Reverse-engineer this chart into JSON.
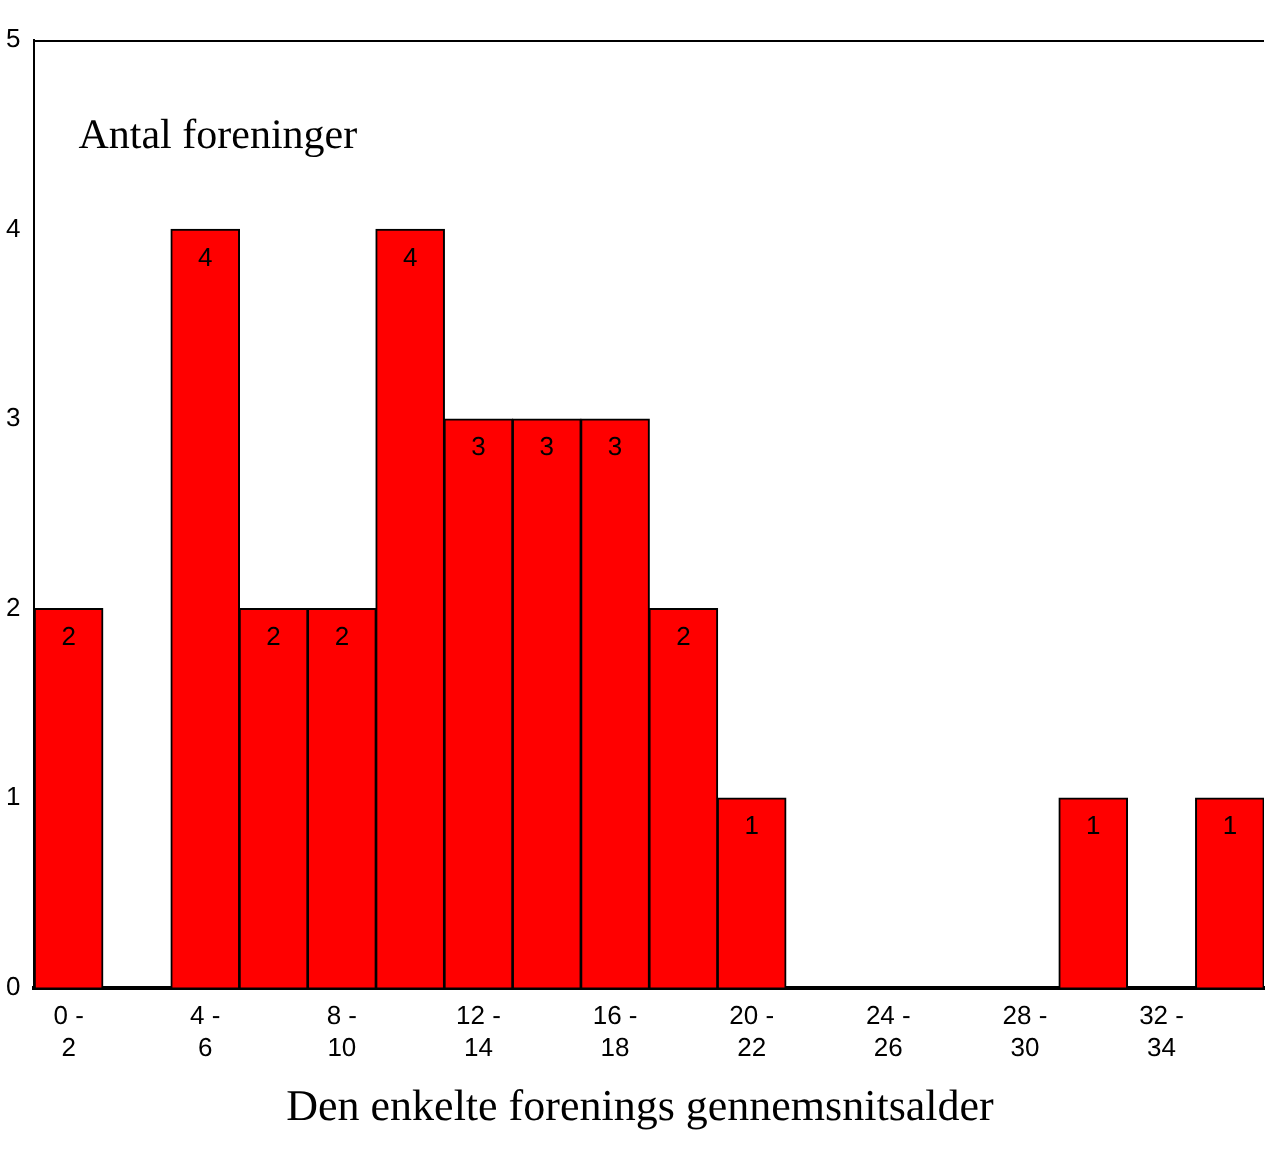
{
  "chart_data": {
    "type": "bar",
    "xlabel": "Den enkelte forenings gennemsnitsalder",
    "ylabel": "Antal foreninger",
    "categories": [
      "0 - 2",
      null,
      "4 - 6",
      null,
      "8 - 10",
      null,
      "12 - 14",
      null,
      "16 - 18",
      null,
      "20 - 22",
      null,
      "24 - 26",
      null,
      "28 - 30",
      null,
      "32 - 34",
      null
    ],
    "values": [
      2,
      0,
      4,
      2,
      2,
      4,
      3,
      3,
      3,
      2,
      1,
      0,
      0,
      0,
      0,
      1,
      0,
      1
    ],
    "value_labels": [
      "2",
      null,
      "4",
      "2",
      "2",
      "4",
      "3",
      "3",
      "3",
      "2",
      "1",
      null,
      null,
      null,
      null,
      "1",
      null,
      "1"
    ],
    "color": "#ff0000",
    "ylim": [
      0,
      5
    ],
    "yticks": [
      0,
      1,
      2,
      3,
      4,
      5
    ],
    "grid": false,
    "legend": false
  }
}
